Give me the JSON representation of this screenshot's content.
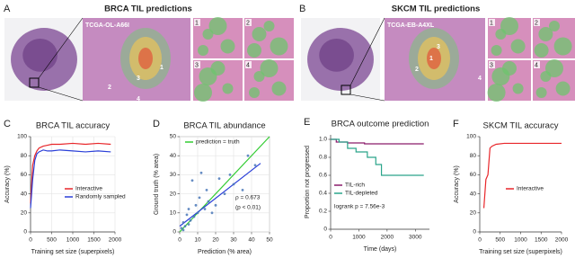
{
  "panels": [
    {
      "label": "A",
      "title": "BRCA TIL predictions",
      "case_id": "TCGA-OL-A66I",
      "region_labels": [
        "1",
        "2",
        "3",
        "4"
      ],
      "tile_labels": [
        "1",
        "2",
        "3",
        "4"
      ]
    },
    {
      "label": "B",
      "title": "SKCM TIL predictions",
      "case_id": "TCGA-EB-A4XL",
      "region_labels": [
        "1",
        "2",
        "3",
        "4"
      ],
      "tile_labels": [
        "1",
        "2",
        "3",
        "4"
      ]
    }
  ],
  "chart_data": [
    {
      "type": "line",
      "panel": "C",
      "title": "BRCA TIL accuracy",
      "xlabel": "Training set size (superpixels)",
      "ylabel": "Accuracy (%)",
      "xlim": [
        0,
        2000
      ],
      "ylim": [
        0,
        100
      ],
      "xticks": [
        0,
        500,
        1000,
        1500,
        2000
      ],
      "yticks": [
        0,
        20,
        40,
        60,
        80,
        100
      ],
      "grid": true,
      "series": [
        {
          "name": "Interactive",
          "color": "#e8262a",
          "x": [
            0,
            50,
            100,
            150,
            200,
            300,
            400,
            500,
            700,
            1000,
            1300,
            1600,
            1900
          ],
          "values": [
            30,
            70,
            80,
            85,
            88,
            90,
            91,
            92,
            92,
            93,
            92,
            93,
            92
          ]
        },
        {
          "name": "Randomly sampled",
          "color": "#2a3fd8",
          "x": [
            0,
            50,
            100,
            150,
            200,
            300,
            400,
            500,
            700,
            1000,
            1300,
            1600,
            1900
          ],
          "values": [
            25,
            55,
            75,
            82,
            84,
            86,
            85,
            85,
            86,
            85,
            84,
            85,
            84
          ]
        }
      ]
    },
    {
      "type": "scatter",
      "panel": "D",
      "title": "BRCA TIL abundance",
      "xlabel": "Prediction (% area)",
      "ylabel": "Ground truth (% area)",
      "xlim": [
        0,
        50
      ],
      "ylim": [
        0,
        50
      ],
      "xticks": [
        0,
        10,
        20,
        30,
        40,
        50
      ],
      "yticks": [
        0,
        10,
        20,
        30,
        40,
        50
      ],
      "grid": true,
      "annotations": [
        "ρ = 0.673",
        "(p < 0.01)"
      ],
      "series": [
        {
          "name": "prediction = truth",
          "type": "line",
          "color": "#33cc33",
          "x": [
            0,
            50
          ],
          "values": [
            0,
            50
          ]
        },
        {
          "type": "line",
          "color": "#2a3fd8",
          "x": [
            0,
            45
          ],
          "values": [
            3,
            36
          ]
        },
        {
          "type": "scatter",
          "color": "#4a78b8",
          "x": [
            1,
            2,
            2,
            3,
            4,
            5,
            5,
            6,
            7,
            8,
            9,
            10,
            11,
            12,
            14,
            15,
            16,
            18,
            20,
            22,
            25,
            28,
            30,
            35,
            38,
            42
          ],
          "values": [
            2,
            1,
            5,
            3,
            9,
            4,
            12,
            6,
            27,
            8,
            14,
            10,
            18,
            31,
            12,
            22,
            16,
            10,
            14,
            28,
            20,
            30,
            25,
            22,
            40,
            35
          ]
        }
      ]
    },
    {
      "type": "line",
      "panel": "E",
      "title": "BRCA outcome prediction",
      "xlabel": "Time (days)",
      "ylabel": "Proportion not progressed",
      "xlim": [
        0,
        3500
      ],
      "ylim": [
        0,
        1.05
      ],
      "xticks": [
        0,
        1000,
        2000,
        3000
      ],
      "yticks": [
        0,
        0.2,
        0.4,
        0.6,
        0.8,
        {
          "value": 1,
          "label": "1.0"
        }
      ],
      "grid": false,
      "annotations": [
        "logrank p = 7.56e-3"
      ],
      "series": [
        {
          "name": "TIL-rich",
          "color": "#8b1a6b",
          "x": [
            0,
            200,
            200,
            600,
            600,
            1200,
            1200,
            3300
          ],
          "values": [
            1.0,
            1.0,
            0.97,
            0.97,
            0.96,
            0.96,
            0.95,
            0.95
          ]
        },
        {
          "name": "TIL-depleted",
          "color": "#2aa58a",
          "x": [
            0,
            300,
            300,
            600,
            600,
            900,
            900,
            1300,
            1300,
            1600,
            1600,
            1800,
            1800,
            3300
          ],
          "values": [
            1.0,
            1.0,
            0.97,
            0.97,
            0.9,
            0.9,
            0.86,
            0.86,
            0.8,
            0.8,
            0.72,
            0.72,
            0.6,
            0.6
          ]
        }
      ]
    },
    {
      "type": "line",
      "panel": "F",
      "title": "SKCM TIL accuracy",
      "xlabel": "Training set size (superpixels)",
      "ylabel": "Accuracy (%)",
      "xlim": [
        0,
        2000
      ],
      "ylim": [
        0,
        100
      ],
      "xticks": [
        0,
        500,
        1000,
        1500,
        2000
      ],
      "yticks": [
        0,
        20,
        40,
        60,
        80,
        100
      ],
      "grid": false,
      "series": [
        {
          "name": "Interactive",
          "color": "#e8262a",
          "x": [
            100,
            150,
            200,
            250,
            300,
            400,
            600,
            1000,
            1500,
            2000
          ],
          "values": [
            25,
            55,
            60,
            88,
            90,
            92,
            93,
            93,
            93,
            93
          ]
        }
      ]
    }
  ]
}
